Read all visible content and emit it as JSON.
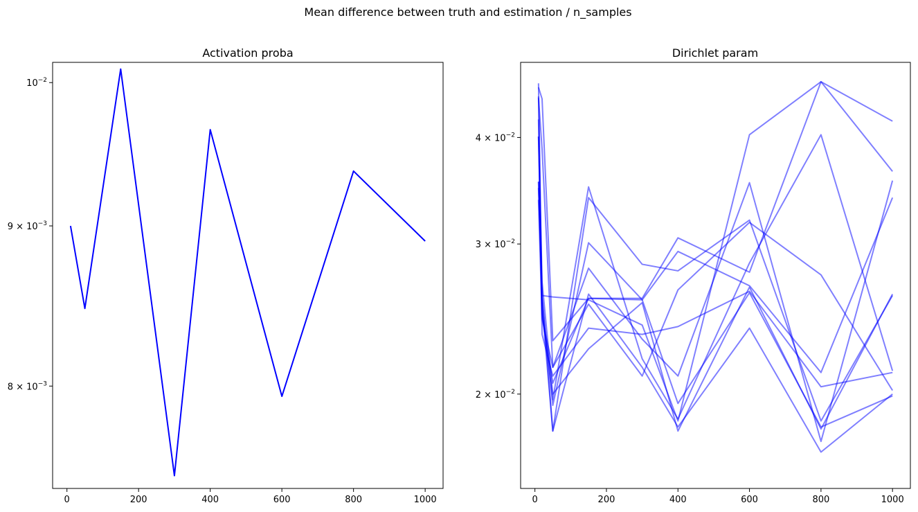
{
  "suptitle": "Mean difference between truth and estimation / n_samples",
  "line_color": "#0000ff",
  "chart_data": [
    {
      "type": "line",
      "title": "Activation proba",
      "xlabel": "",
      "ylabel": "",
      "yscale": "log",
      "xlim": [
        -40,
        1050
      ],
      "ylim": [
        0.00742,
        0.01015
      ],
      "x_ticks": [
        0,
        200,
        400,
        600,
        800,
        1000
      ],
      "x_tick_labels": [
        "0",
        "200",
        "400",
        "600",
        "800",
        "1000"
      ],
      "y_ticks": [
        0.008,
        0.009,
        0.01
      ],
      "y_tick_labels": [
        {
          "base": "8 × 10",
          "exp": "−3"
        },
        {
          "base": "9 × 10",
          "exp": "−3"
        },
        {
          "base": "10",
          "exp": "−2"
        }
      ],
      "grid": false,
      "line_alpha": 1.0,
      "series": [
        {
          "x": [
            10,
            50,
            150,
            300,
            400,
            600,
            800,
            1000
          ],
          "y": [
            0.009,
            0.00847,
            0.0101,
            0.00749,
            0.00966,
            0.00794,
            0.00937,
            0.0089
          ]
        }
      ]
    },
    {
      "type": "line",
      "title": "Dirichlet param",
      "xlabel": "",
      "ylabel": "",
      "yscale": "log",
      "xlim": [
        -40,
        1050
      ],
      "ylim": [
        0.0155,
        0.049
      ],
      "x_ticks": [
        0,
        200,
        400,
        600,
        800,
        1000
      ],
      "x_tick_labels": [
        "0",
        "200",
        "400",
        "600",
        "800",
        "1000"
      ],
      "y_ticks": [
        0.02,
        0.03,
        0.04
      ],
      "y_tick_labels": [
        {
          "base": "2 × 10",
          "exp": "−2"
        },
        {
          "base": "3 × 10",
          "exp": "−2"
        },
        {
          "base": "4 × 10",
          "exp": "−2"
        }
      ],
      "grid": false,
      "line_alpha": 0.5,
      "series": [
        {
          "x": [
            10,
            20,
            50,
            150,
            300,
            400,
            600,
            800,
            1000
          ],
          "y": [
            0.0458,
            0.0444,
            0.0231,
            0.0259,
            0.0259,
            0.0305,
            0.0278,
            0.0465,
            0.0418
          ]
        },
        {
          "x": [
            10,
            20,
            50,
            150,
            300,
            400,
            600,
            800,
            1000
          ],
          "y": [
            0.0445,
            0.0388,
            0.0215,
            0.0255,
            0.021,
            0.0265,
            0.0318,
            0.0276,
            0.0202
          ]
        },
        {
          "x": [
            10,
            20,
            50,
            150,
            300,
            400,
            600,
            800,
            1000
          ],
          "y": [
            0.0401,
            0.0261,
            0.026,
            0.0258,
            0.0241,
            0.0186,
            0.0403,
            0.0465,
            0.0365
          ]
        },
        {
          "x": [
            10,
            20,
            50,
            150,
            300,
            400,
            600,
            800,
            1000
          ],
          "y": [
            0.0355,
            0.0251,
            0.0197,
            0.035,
            0.022,
            0.0187,
            0.0285,
            0.0403,
            0.0213
          ]
        },
        {
          "x": [
            10,
            20,
            50,
            150,
            300,
            400,
            600,
            800,
            1000
          ],
          "y": [
            0.0349,
            0.0262,
            0.0181,
            0.034,
            0.0284,
            0.0279,
            0.032,
            0.0186,
            0.0261
          ]
        },
        {
          "x": [
            10,
            20,
            50,
            150,
            300,
            400,
            600,
            800,
            1000
          ],
          "y": [
            0.0338,
            0.0245,
            0.0215,
            0.0281,
            0.0232,
            0.021,
            0.0354,
            0.0176,
            0.0356
          ]
        },
        {
          "x": [
            10,
            20,
            50,
            150,
            300,
            400,
            600,
            800,
            1000
          ],
          "y": [
            0.0355,
            0.026,
            0.0194,
            0.0301,
            0.0258,
            0.0294,
            0.0268,
            0.0212,
            0.034
          ]
        },
        {
          "x": [
            10,
            20,
            50,
            150,
            300,
            400,
            600,
            800,
            1000
          ],
          "y": [
            0.0401,
            0.0271,
            0.02,
            0.0226,
            0.0256,
            0.0181,
            0.0267,
            0.0182,
            0.0262
          ]
        },
        {
          "x": [
            10,
            20,
            50,
            150,
            300,
            400,
            600,
            800,
            1000
          ],
          "y": [
            0.042,
            0.0235,
            0.021,
            0.0239,
            0.0235,
            0.024,
            0.0264,
            0.0204,
            0.0212
          ]
        },
        {
          "x": [
            10,
            20,
            50,
            150,
            300,
            400,
            600,
            800,
            1000
          ],
          "y": [
            0.0447,
            0.0248,
            0.0206,
            0.0259,
            0.0258,
            0.0195,
            0.0263,
            0.0183,
            0.0199
          ]
        },
        {
          "x": [
            10,
            20,
            50,
            150,
            300,
            400,
            600,
            800,
            1000
          ],
          "y": [
            0.0463,
            0.0253,
            0.0181,
            0.0262,
            0.0215,
            0.0183,
            0.0239,
            0.0171,
            0.02
          ]
        }
      ]
    }
  ]
}
